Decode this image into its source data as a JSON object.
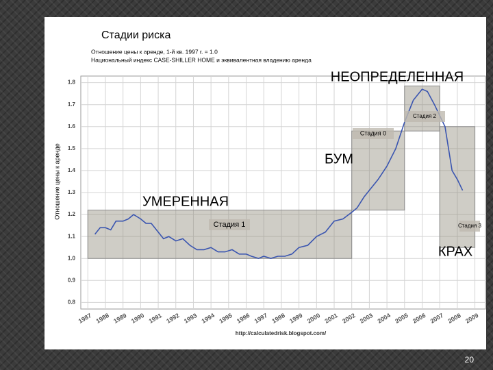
{
  "chart_data": {
    "type": "line",
    "title": "Стадии риска",
    "subtitle": [
      "Отношение цены к аренде, 1-й кв. 1997 г. = 1.0",
      "Национальный индекс CASE-SHILLER HOME и эквивалентная владению аренда"
    ],
    "y_label": "Отношение цены к аренде",
    "source": "http://calculatedrisk.blogspot.com/",
    "slide_number": "20",
    "color": "#3a55b0",
    "x": [
      1987.4,
      1987.7,
      1988.0,
      1988.3,
      1988.6,
      1989.0,
      1989.3,
      1989.6,
      1990.0,
      1990.3,
      1990.6,
      1991.0,
      1991.3,
      1991.6,
      1992.0,
      1992.4,
      1992.8,
      1993.2,
      1993.6,
      1994.0,
      1994.4,
      1994.8,
      1995.2,
      1995.6,
      1996.0,
      1996.3,
      1996.7,
      1997.0,
      1997.4,
      1997.8,
      1998.2,
      1998.6,
      1999.0,
      1999.5,
      2000.0,
      2000.5,
      2001.0,
      2001.5,
      2002.0,
      2002.3,
      2002.7,
      2003.0,
      2003.5,
      2004.0,
      2004.5,
      2005.0,
      2005.5,
      2006.0,
      2006.3,
      2006.7,
      2007.0,
      2007.3,
      2007.7,
      2008.0,
      2008.3
    ],
    "values": [
      1.11,
      1.14,
      1.14,
      1.13,
      1.17,
      1.17,
      1.18,
      1.2,
      1.18,
      1.16,
      1.16,
      1.12,
      1.09,
      1.1,
      1.08,
      1.09,
      1.06,
      1.04,
      1.04,
      1.05,
      1.03,
      1.03,
      1.04,
      1.02,
      1.02,
      1.01,
      1.0,
      1.01,
      1.0,
      1.01,
      1.01,
      1.02,
      1.05,
      1.06,
      1.1,
      1.12,
      1.17,
      1.18,
      1.21,
      1.23,
      1.28,
      1.31,
      1.36,
      1.42,
      1.5,
      1.62,
      1.72,
      1.77,
      1.76,
      1.7,
      1.65,
      1.6,
      1.4,
      1.36,
      1.31
    ],
    "xlim": [
      1986.6,
      2009.6
    ],
    "xticks": [
      1987,
      1988,
      1989,
      1990,
      1991,
      1992,
      1993,
      1994,
      1995,
      1996,
      1997,
      1998,
      1999,
      2000,
      2001,
      2002,
      2003,
      2004,
      2005,
      2006,
      2007,
      2008,
      2009
    ],
    "ylim": [
      0.77,
      1.83
    ],
    "yticks": [
      1.8,
      1.7,
      1.6,
      1.5,
      1.4,
      1.3,
      1.2,
      1.1,
      {
        "value": 1,
        "label": "1.0"
      },
      0.9,
      0.8
    ],
    "grid": true,
    "regions": [
      {
        "label": "Стадия 1",
        "x": [
          1987,
          2002
        ],
        "y": [
          1.0,
          1.22
        ]
      },
      {
        "label": "Стадия 0",
        "x": [
          2002,
          2005
        ],
        "y": [
          1.22,
          1.58
        ]
      },
      {
        "label": "Стадия 2",
        "x": [
          2005,
          2007
        ],
        "y": [
          1.58,
          1.785
        ]
      },
      {
        "label": "Стадия 3",
        "x": [
          2007,
          2009
        ],
        "y": [
          1.05,
          1.6
        ]
      }
    ],
    "annotations": [
      "НЕОПРЕДЕЛЕННАЯ",
      "БУМ",
      "УМЕРЕННАЯ",
      "КРАХ"
    ]
  }
}
